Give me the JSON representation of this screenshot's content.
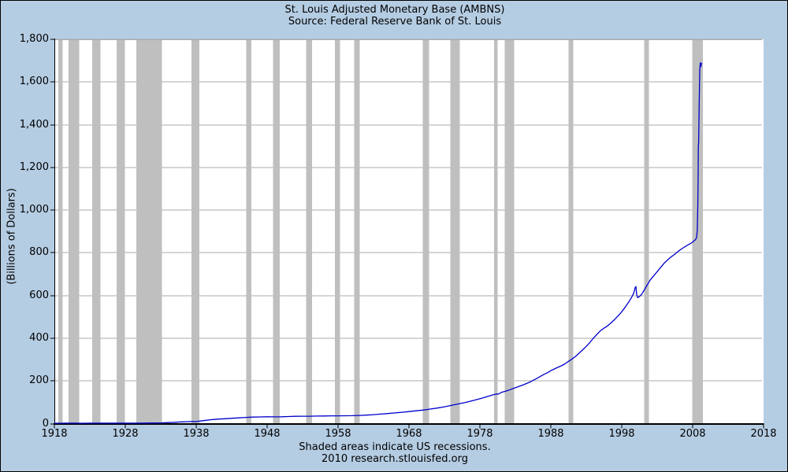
{
  "window": {
    "bg_color": "#b5cde3",
    "border_color": "#000000"
  },
  "chart": {
    "title": "St. Louis Adjusted Monetary Base (AMBNS)",
    "subtitle": "Source: Federal Reserve Bank of St. Louis",
    "ylabel": "(Billions of Dollars)",
    "footnote": "Shaded areas indicate US recessions.",
    "source_line": "2010 research.stlouisfed.org"
  },
  "chart_data": {
    "type": "line",
    "title": "St. Louis Adjusted Monetary Base (AMBNS)",
    "subtitle": "Source: Federal Reserve Bank of St. Louis",
    "xlabel": "",
    "ylabel": "(Billions of Dollars)",
    "xlim": [
      1918,
      2018
    ],
    "ylim": [
      0,
      1800
    ],
    "x_ticks": [
      1918,
      1928,
      1938,
      1948,
      1958,
      1968,
      1978,
      1988,
      1998,
      2008,
      2018
    ],
    "y_ticks": [
      0,
      200,
      400,
      600,
      800,
      1000,
      1200,
      1400,
      1600,
      1800
    ],
    "y_tick_labels": [
      "0",
      "200",
      "400",
      "600",
      "800",
      "1,000",
      "1,200",
      "1,400",
      "1,600",
      "1,800"
    ],
    "grid": "horizontal",
    "legend": "none",
    "colors": {
      "plot_bg": "#ffffff",
      "page_bg": "#b5cde3",
      "line": "#0000cd",
      "recession_band": "#bfbfbf",
      "gridline": "#ababab",
      "axis": "#000000"
    },
    "recessions": [
      [
        1918.58,
        1919.17
      ],
      [
        1920.0,
        1921.5
      ],
      [
        1923.33,
        1924.5
      ],
      [
        1926.75,
        1927.92
      ],
      [
        1929.58,
        1933.17
      ],
      [
        1937.33,
        1938.42
      ],
      [
        1945.08,
        1945.75
      ],
      [
        1948.83,
        1949.75
      ],
      [
        1953.5,
        1954.33
      ],
      [
        1957.58,
        1958.25
      ],
      [
        1960.25,
        1961.08
      ],
      [
        1969.92,
        1970.83
      ],
      [
        1973.83,
        1975.17
      ],
      [
        1980.0,
        1980.5
      ],
      [
        1981.5,
        1982.83
      ],
      [
        1990.5,
        1991.17
      ],
      [
        2001.17,
        2001.83
      ],
      [
        2007.92,
        2009.42
      ]
    ],
    "series": [
      {
        "name": "AMBNS",
        "points": [
          [
            1918.0,
            1.7
          ],
          [
            1918.5,
            1.9
          ],
          [
            1919.0,
            2.0
          ],
          [
            1919.5,
            2.1
          ],
          [
            1920.0,
            2.3
          ],
          [
            1920.5,
            2.3
          ],
          [
            1921.0,
            2.1
          ],
          [
            1921.5,
            1.95
          ],
          [
            1922.0,
            1.9
          ],
          [
            1923.0,
            2.1
          ],
          [
            1924.0,
            2.15
          ],
          [
            1925.0,
            2.2
          ],
          [
            1926.0,
            2.2
          ],
          [
            1927.0,
            2.25
          ],
          [
            1928.0,
            2.3
          ],
          [
            1929.0,
            2.35
          ],
          [
            1930.0,
            2.25
          ],
          [
            1931.0,
            2.4
          ],
          [
            1932.0,
            2.8
          ],
          [
            1933.0,
            3.3
          ],
          [
            1933.5,
            3.9
          ],
          [
            1934.0,
            4.7
          ],
          [
            1934.5,
            5.6
          ],
          [
            1935.0,
            6.4
          ],
          [
            1935.5,
            7.2
          ],
          [
            1936.0,
            8.2
          ],
          [
            1936.5,
            9.0
          ],
          [
            1937.0,
            9.6
          ],
          [
            1937.5,
            9.9
          ],
          [
            1937.9,
            9.7
          ],
          [
            1938.2,
            10.8
          ],
          [
            1938.6,
            12.2
          ],
          [
            1939.0,
            14.0
          ],
          [
            1939.5,
            16.0
          ],
          [
            1940.0,
            18.0
          ],
          [
            1940.5,
            19.5
          ],
          [
            1941.0,
            21.0
          ],
          [
            1942.0,
            23.0
          ],
          [
            1943.0,
            25.0
          ],
          [
            1944.0,
            27.0
          ],
          [
            1945.0,
            29.0
          ],
          [
            1946.0,
            30.5
          ],
          [
            1947.0,
            31.5
          ],
          [
            1948.0,
            32.2
          ],
          [
            1949.0,
            31.8
          ],
          [
            1950.0,
            32.2
          ],
          [
            1951.0,
            33.2
          ],
          [
            1952.0,
            34.2
          ],
          [
            1953.0,
            34.8
          ],
          [
            1954.0,
            34.6
          ],
          [
            1955.0,
            35.2
          ],
          [
            1956.0,
            35.8
          ],
          [
            1957.0,
            36.3
          ],
          [
            1958.0,
            36.6
          ],
          [
            1959.0,
            37.0
          ],
          [
            1960.0,
            37.2
          ],
          [
            1961.0,
            38.2
          ],
          [
            1962.0,
            39.8
          ],
          [
            1963.0,
            42.0
          ],
          [
            1964.0,
            44.5
          ],
          [
            1965.0,
            47.0
          ],
          [
            1966.0,
            50.0
          ],
          [
            1967.0,
            53.0
          ],
          [
            1968.0,
            56.5
          ],
          [
            1969.0,
            60.0
          ],
          [
            1970.0,
            63.5
          ],
          [
            1971.0,
            68.0
          ],
          [
            1972.0,
            73.0
          ],
          [
            1973.0,
            79.0
          ],
          [
            1974.0,
            86.0
          ],
          [
            1975.0,
            92.5
          ],
          [
            1976.0,
            99.5
          ],
          [
            1977.0,
            107.5
          ],
          [
            1978.0,
            116.5
          ],
          [
            1979.0,
            126.5
          ],
          [
            1980.0,
            136.5
          ],
          [
            1980.4,
            139.0
          ],
          [
            1980.6,
            138.0
          ],
          [
            1981.0,
            146.0
          ],
          [
            1982.0,
            156.0
          ],
          [
            1983.0,
            168.0
          ],
          [
            1984.0,
            180.0
          ],
          [
            1985.0,
            194.0
          ],
          [
            1986.0,
            211.0
          ],
          [
            1987.0,
            230.0
          ],
          [
            1987.5,
            238.0
          ],
          [
            1988.0,
            248.0
          ],
          [
            1988.5,
            256.0
          ],
          [
            1989.0,
            264.0
          ],
          [
            1989.5,
            271.0
          ],
          [
            1990.0,
            280.0
          ],
          [
            1990.5,
            292.0
          ],
          [
            1991.0,
            303.0
          ],
          [
            1991.5,
            315.0
          ],
          [
            1992.0,
            330.0
          ],
          [
            1992.5,
            346.0
          ],
          [
            1993.0,
            362.0
          ],
          [
            1993.5,
            380.0
          ],
          [
            1994.0,
            400.0
          ],
          [
            1994.5,
            418.0
          ],
          [
            1995.0,
            435.0
          ],
          [
            1995.5,
            447.0
          ],
          [
            1996.0,
            458.0
          ],
          [
            1996.5,
            472.0
          ],
          [
            1997.0,
            488.0
          ],
          [
            1997.5,
            505.0
          ],
          [
            1998.0,
            524.0
          ],
          [
            1998.5,
            546.0
          ],
          [
            1999.0,
            570.0
          ],
          [
            1999.4,
            592.0
          ],
          [
            1999.7,
            612.0
          ],
          [
            1999.9,
            638.0
          ],
          [
            2000.0,
            642.0
          ],
          [
            2000.1,
            605.0
          ],
          [
            2000.25,
            590.0
          ],
          [
            2000.5,
            596.0
          ],
          [
            2000.75,
            604.0
          ],
          [
            2001.0,
            616.0
          ],
          [
            2001.25,
            630.0
          ],
          [
            2001.5,
            645.0
          ],
          [
            2001.75,
            658.0
          ],
          [
            2002.0,
            672.0
          ],
          [
            2002.5,
            692.0
          ],
          [
            2003.0,
            712.0
          ],
          [
            2003.5,
            732.0
          ],
          [
            2004.0,
            752.0
          ],
          [
            2004.5,
            768.0
          ],
          [
            2005.0,
            782.0
          ],
          [
            2005.5,
            794.0
          ],
          [
            2006.0,
            808.0
          ],
          [
            2006.5,
            820.0
          ],
          [
            2007.0,
            830.0
          ],
          [
            2007.3,
            836.0
          ],
          [
            2007.6,
            842.0
          ],
          [
            2007.9,
            848.0
          ],
          [
            2008.1,
            853.0
          ],
          [
            2008.25,
            858.0
          ],
          [
            2008.4,
            862.0
          ],
          [
            2008.55,
            870.0
          ],
          [
            2008.65,
            905.0
          ],
          [
            2008.72,
            1010.0
          ],
          [
            2008.78,
            1180.0
          ],
          [
            2008.8,
            1300.0
          ],
          [
            2008.85,
            1315.0
          ],
          [
            2008.92,
            1500.0
          ],
          [
            2009.0,
            1655.0
          ],
          [
            2009.08,
            1690.0
          ],
          [
            2009.15,
            1672.0
          ],
          [
            2009.25,
            1690.0
          ]
        ]
      }
    ]
  }
}
